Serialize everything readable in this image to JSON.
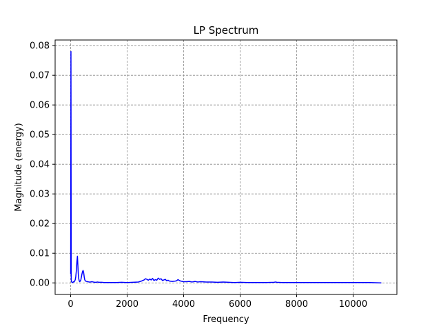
{
  "chart_data": {
    "type": "line",
    "title": "LP Spectrum",
    "xlabel": "Frequency",
    "ylabel": "Magnitude (energy)",
    "xlim": [
      -550,
      11550
    ],
    "ylim": [
      -0.0039,
      0.0819
    ],
    "xticks": [
      0,
      2000,
      4000,
      6000,
      8000,
      10000
    ],
    "xtick_labels": [
      "0",
      "2000",
      "4000",
      "6000",
      "8000",
      "10000"
    ],
    "yticks": [
      0.0,
      0.01,
      0.02,
      0.03,
      0.04,
      0.05,
      0.06,
      0.07,
      0.08
    ],
    "ytick_labels": [
      "0.00",
      "0.01",
      "0.02",
      "0.03",
      "0.04",
      "0.05",
      "0.06",
      "0.07",
      "0.08"
    ],
    "grid": true,
    "legend": "none",
    "series": [
      {
        "color": "#0000ff",
        "x": [
          0,
          10,
          20,
          30,
          45,
          60,
          80,
          100,
          120,
          140,
          160,
          180,
          200,
          220,
          240,
          255,
          270,
          285,
          300,
          320,
          340,
          360,
          380,
          400,
          420,
          440,
          460,
          480,
          500,
          530,
          560,
          600,
          650,
          700,
          750,
          800,
          850,
          900,
          950,
          1000,
          1100,
          1200,
          1400,
          1600,
          1800,
          2000,
          2200,
          2400,
          2500,
          2600,
          2650,
          2700,
          2750,
          2800,
          2850,
          2900,
          2950,
          3000,
          3050,
          3100,
          3150,
          3200,
          3250,
          3300,
          3350,
          3400,
          3450,
          3500,
          3600,
          3700,
          3750,
          3800,
          3850,
          3900,
          4000,
          4100,
          4200,
          4300,
          4400,
          4500,
          4600,
          4800,
          5000,
          5200,
          5400,
          5600,
          5800,
          6000,
          6300,
          6600,
          6900,
          7200,
          7250,
          7300,
          7500,
          7800,
          8000,
          8300,
          8600,
          9000,
          9400,
          9800,
          10200,
          10600,
          11000
        ],
        "y": [
          0.003,
          0.078,
          0.001,
          0.0004,
          0.0002,
          0.0001,
          0.0002,
          0.0004,
          0.0003,
          0.0006,
          0.001,
          0.002,
          0.004,
          0.007,
          0.009,
          0.006,
          0.003,
          0.0015,
          0.0008,
          0.0004,
          0.0006,
          0.001,
          0.002,
          0.003,
          0.0038,
          0.0042,
          0.0035,
          0.002,
          0.001,
          0.0006,
          0.0005,
          0.0004,
          0.0003,
          0.0003,
          0.0004,
          0.0003,
          0.0002,
          0.0002,
          0.0003,
          0.0002,
          0.0002,
          0.0001,
          0.0001,
          0.0001,
          0.0002,
          0.0001,
          0.0002,
          0.0003,
          0.0006,
          0.001,
          0.0014,
          0.0012,
          0.0009,
          0.0013,
          0.001,
          0.0015,
          0.0008,
          0.0011,
          0.0009,
          0.0016,
          0.0012,
          0.0014,
          0.0008,
          0.001,
          0.0012,
          0.0007,
          0.0009,
          0.0006,
          0.0005,
          0.0006,
          0.0007,
          0.0011,
          0.0008,
          0.0006,
          0.0004,
          0.0004,
          0.0005,
          0.0003,
          0.0005,
          0.0003,
          0.0004,
          0.0003,
          0.0003,
          0.0002,
          0.0003,
          0.0002,
          0.0001,
          0.0002,
          0.0001,
          0.0001,
          0.0001,
          0.0002,
          0.0003,
          0.0002,
          0.0001,
          0.0001,
          0.0001,
          0.0001,
          0.0001,
          0.0001,
          0.0001,
          0.0001,
          0.0001,
          0.0001,
          0.0
        ]
      }
    ]
  }
}
